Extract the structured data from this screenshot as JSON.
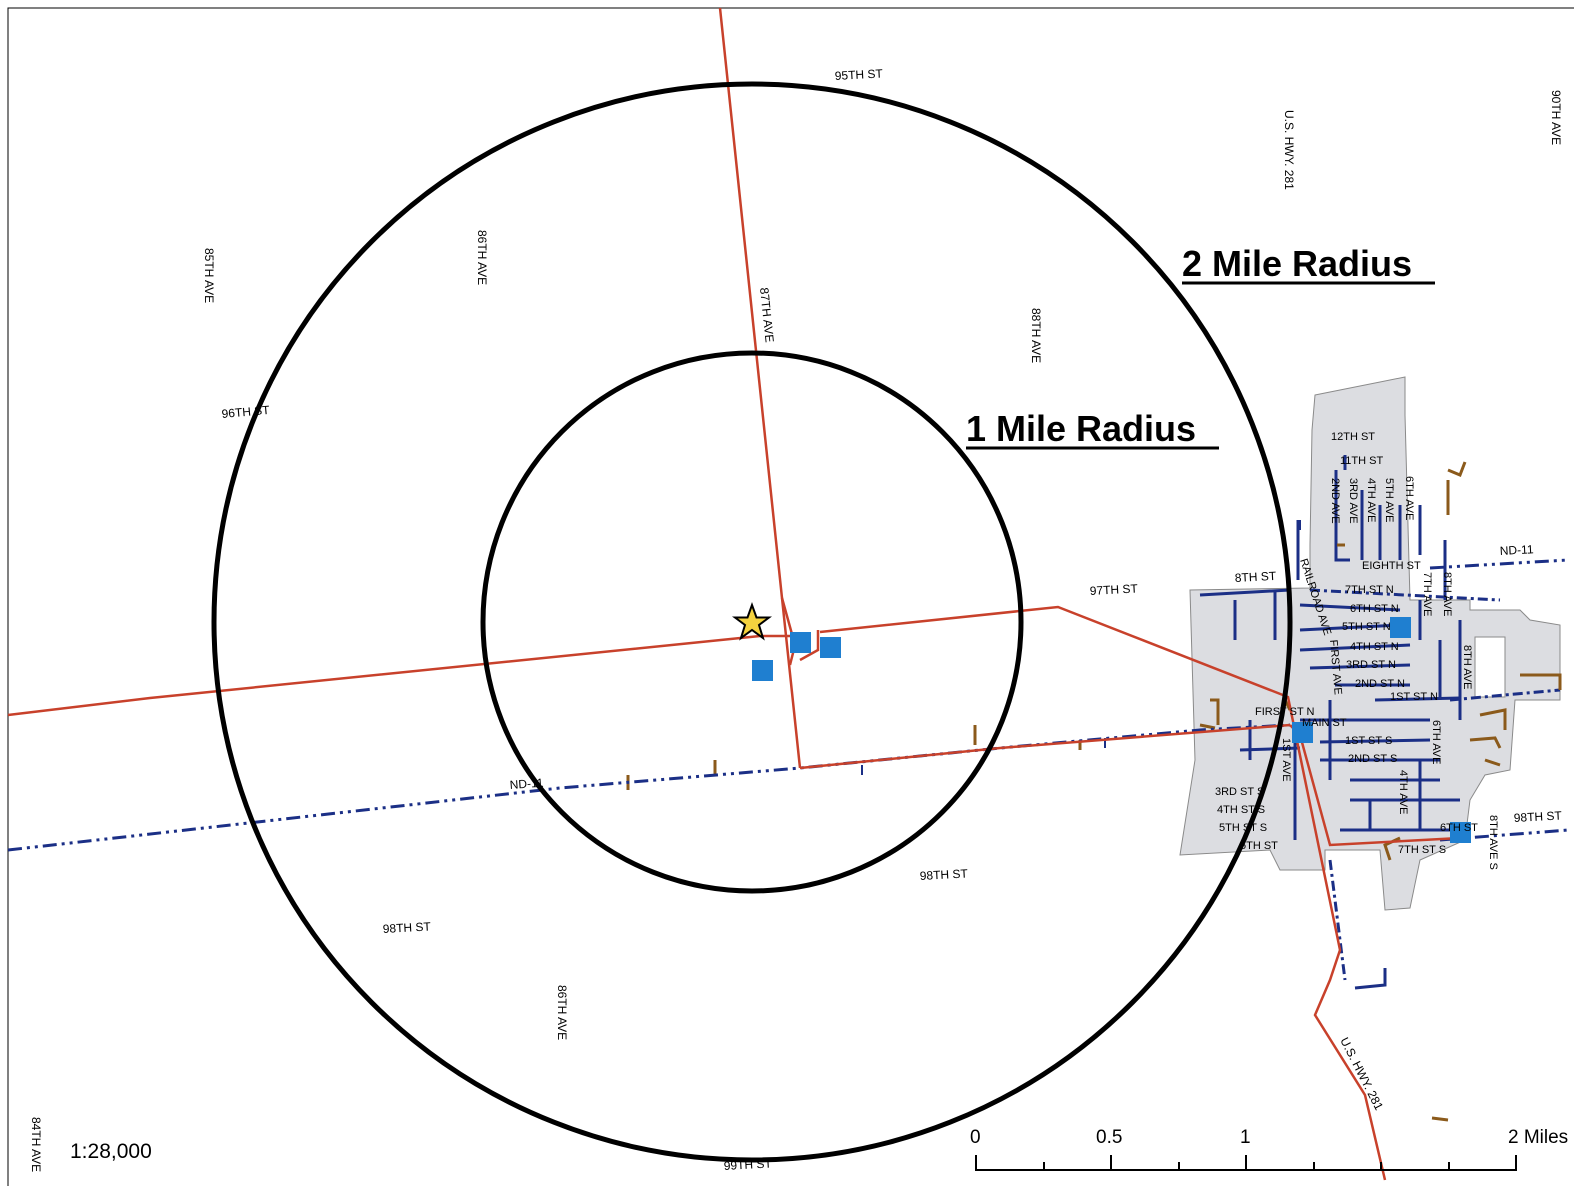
{
  "map": {
    "radius_labels": {
      "two_mile": "2 Mile Radius",
      "one_mile": "1 Mile Radius"
    },
    "scale_ratio": "1:28,000",
    "scale_bar": {
      "ticks": [
        "0",
        "0.5",
        "1",
        "2 Miles"
      ]
    },
    "road_labels": {
      "st95": "95TH ST",
      "ushwy_north": "U.S. HWY. 281",
      "ave90": "90TH AVE",
      "ave85": "85TH AVE",
      "ave86_north": "86TH AVE",
      "ave87": "87TH AVE",
      "ave88": "88TH AVE",
      "st96": "96TH ST",
      "st97": "97TH ST",
      "st8": "8TH ST",
      "nd11_east": "ND-11",
      "nd11_west": "ND-11",
      "st98_center": "98TH ST",
      "st98_west": "98TH ST",
      "st98_east": "98TH ST",
      "ave86_south": "86TH AVE",
      "ushwy_south": "U.S. HWY. 281",
      "ave84": "84TH AVE",
      "st99": "99TH ST"
    },
    "town_labels": {
      "st12": "12TH ST",
      "st11": "11TH ST",
      "ave2nd": "2ND AVE",
      "ave3rd": "3RD AVE",
      "ave4th": "4TH AVE",
      "ave5th": "5TH AVE",
      "ave6th": "6TH AVE",
      "eighth_st": "EIGHTH ST",
      "st7n": "7TH ST N",
      "st6n": "6TH ST N",
      "st5n": "5TH ST N",
      "st4n": "4TH ST N",
      "st3n": "3RD ST N",
      "st2n": "2ND ST N",
      "st1n": "1ST ST N",
      "first_st_n": "FIRST ST N",
      "main_st": "MAIN ST",
      "st1s": "1ST ST S",
      "st2s": "2ND ST S",
      "st3s": "3RD ST S",
      "st4s": "4TH ST S",
      "st5s": "5TH ST S",
      "st6s_left": "6TH ST",
      "st6s_right": "6TH ST",
      "st7s": "7TH ST S",
      "railroad_ave": "RAILROAD AVE",
      "first_ave": "FIRST AVE",
      "ave7th": "7TH AVE",
      "ave8th": "8TH AVE",
      "ave8th_south": "8TH AVE",
      "ave8th_s": "8TH AVE S",
      "ave6th_s": "6TH AVE",
      "ave4th_s": "4TH AVE",
      "ave1st_s": "1ST AVE"
    }
  }
}
